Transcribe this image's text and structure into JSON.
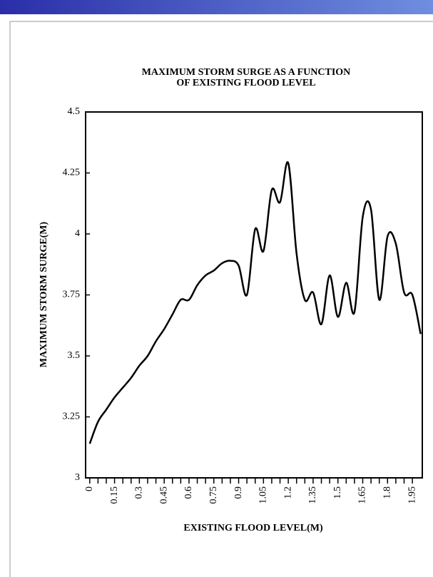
{
  "chart_data": {
    "type": "line",
    "title": [
      "MAXIMUM STORM SURGE AS A FUNCTION",
      "OF EXISTING FLOOD LEVEL"
    ],
    "x_label": "EXISTING FLOOD LEVEL(M)",
    "y_label": "MAXIMUM STORM SURGE(M)",
    "x": [
      0,
      0.05,
      0.1,
      0.15,
      0.2,
      0.25,
      0.3,
      0.35,
      0.4,
      0.45,
      0.5,
      0.55,
      0.6,
      0.65,
      0.7,
      0.75,
      0.8,
      0.85,
      0.9,
      0.95,
      1.0,
      1.05,
      1.1,
      1.15,
      1.2,
      1.25,
      1.3,
      1.35,
      1.4,
      1.45,
      1.5,
      1.55,
      1.6,
      1.65,
      1.7,
      1.75,
      1.8,
      1.85,
      1.9,
      1.95,
      2.0
    ],
    "values": [
      3.14,
      3.23,
      3.28,
      3.33,
      3.37,
      3.41,
      3.46,
      3.5,
      3.56,
      3.61,
      3.67,
      3.73,
      3.73,
      3.79,
      3.83,
      3.85,
      3.88,
      3.89,
      3.87,
      3.75,
      4.02,
      3.93,
      4.18,
      4.13,
      4.29,
      3.92,
      3.73,
      3.76,
      3.63,
      3.83,
      3.66,
      3.8,
      3.68,
      4.07,
      4.1,
      3.73,
      3.99,
      3.96,
      3.76,
      3.75,
      3.59
    ],
    "color": "#000000",
    "xlim": [
      -0.025,
      2.01
    ],
    "ylim": [
      3,
      4.5
    ],
    "xticks": [
      0,
      0.15,
      0.3,
      0.45,
      0.6,
      0.75,
      0.9,
      1.05,
      1.2,
      1.35,
      1.5,
      1.65,
      1.8,
      1.95
    ],
    "xminorticks": [
      0.05,
      0.1,
      0.2,
      0.25,
      0.35,
      0.4,
      0.5,
      0.55,
      0.65,
      0.7,
      0.8,
      0.85,
      0.95,
      1.0,
      1.1,
      1.15,
      1.25,
      1.3,
      1.4,
      1.45,
      1.55,
      1.6,
      1.7,
      1.75,
      1.85,
      1.9
    ],
    "yticks": [
      3,
      3.25,
      3.5,
      3.75,
      4,
      4.25,
      4.5
    ],
    "grid": false
  }
}
